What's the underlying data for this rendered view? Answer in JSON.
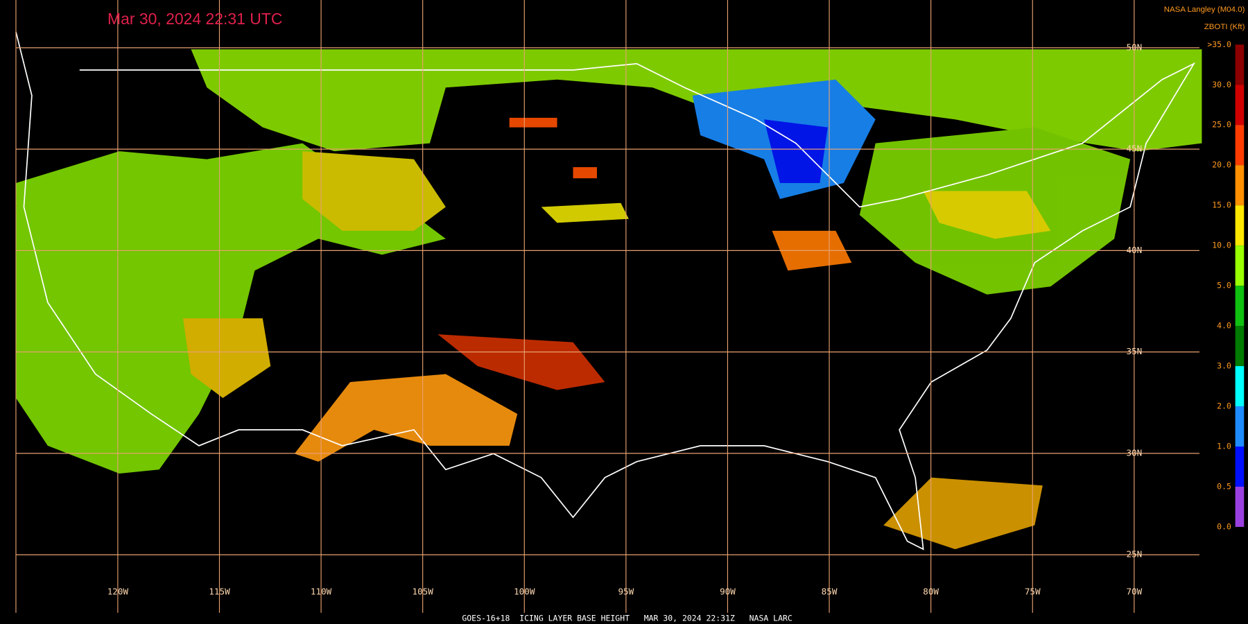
{
  "header": {
    "title": "Mar 30, 2024 22:31 UTC",
    "source": "NASA Langley (M04.0)",
    "product": "ZBOTI (Kft)"
  },
  "grid": {
    "longitudes": [
      "120W",
      "115W",
      "110W",
      "105W",
      "100W",
      "95W",
      "90W",
      "85W",
      "80W",
      "75W",
      "70W"
    ],
    "latitudes": [
      "50N",
      "45N",
      "40N",
      "35N",
      "30N",
      "25N"
    ]
  },
  "colorbar": {
    "labels": [
      ">35.0",
      "30.0",
      "25.0",
      "20.0",
      "15.0",
      "10.0",
      "5.0",
      "4.0",
      "3.0",
      "2.0",
      "1.0",
      "0.5",
      "0.0"
    ],
    "colors": [
      "#8b0000",
      "#d00000",
      "#ff3c00",
      "#ff9000",
      "#ffe800",
      "#9aff00",
      "#10c010",
      "#007a00",
      "#00ffff",
      "#1e8cff",
      "#0010ff",
      "#9a40e0"
    ]
  },
  "footer": "GOES-16+18  ICING LAYER BASE HEIGHT   MAR 30, 2024 22:31Z   NASA LARC"
}
